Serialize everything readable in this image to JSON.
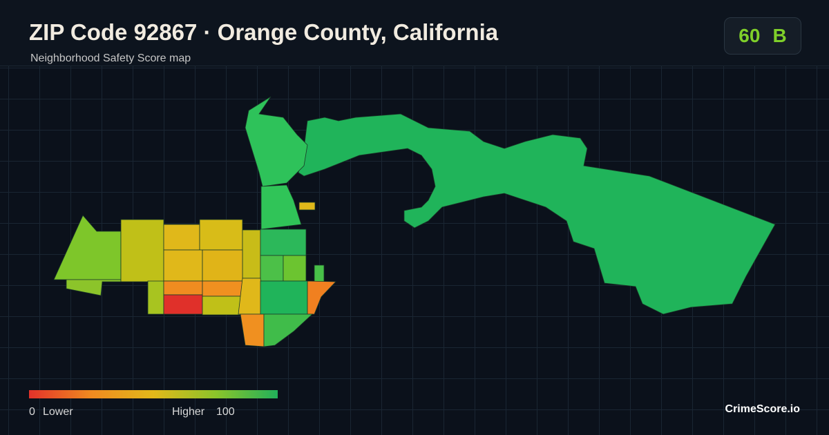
{
  "header": {
    "title": "ZIP Code 92867 · Orange County, California",
    "subtitle": "Neighborhood Safety Score map"
  },
  "score": {
    "value": "60",
    "grade": "B"
  },
  "legend": {
    "min": "0",
    "min_label": "Lower",
    "max_label": "Higher",
    "max": "100"
  },
  "brand": "CrimeScore.io"
}
